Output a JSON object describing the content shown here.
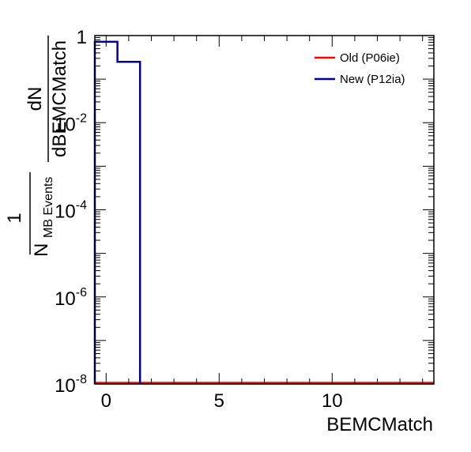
{
  "chart_data": {
    "type": "line",
    "xlabel": "BEMCMatch",
    "ylabel": {
      "fraction_numerator": "1",
      "fraction_denominator_main": "N",
      "fraction_denominator_sub": "MB Events",
      "derivative_numerator": "dN",
      "derivative_denominator": "dBEMCMatch"
    },
    "xlim": [
      -0.5,
      14.5
    ],
    "ylim": [
      1e-08,
      1
    ],
    "yscale": "log",
    "x_ticks": [
      {
        "value": 0,
        "label": "0"
      },
      {
        "value": 5,
        "label": "5"
      },
      {
        "value": 10,
        "label": "10"
      }
    ],
    "y_ticks": [
      {
        "value": 1,
        "label": "1",
        "exponent": ""
      },
      {
        "value": 0.01,
        "label": "10",
        "exponent": "-2"
      },
      {
        "value": 0.0001,
        "label": "10",
        "exponent": "-4"
      },
      {
        "value": 1e-06,
        "label": "10",
        "exponent": "-6"
      },
      {
        "value": 1e-08,
        "label": "10",
        "exponent": "-8"
      }
    ],
    "grid": false,
    "legend_position": "top-right",
    "series": [
      {
        "name": "Old (P06ie)",
        "color": "#ff0000",
        "bins": [
          {
            "x_low": -0.5,
            "x_high": 14.5,
            "value": 1e-08
          }
        ]
      },
      {
        "name": "New (P12ia)",
        "color": "#000099",
        "bins": [
          {
            "x_low": -0.5,
            "x_high": 0.5,
            "value": 0.72
          },
          {
            "x_low": 0.5,
            "x_high": 1.5,
            "value": 0.25
          }
        ]
      }
    ]
  }
}
